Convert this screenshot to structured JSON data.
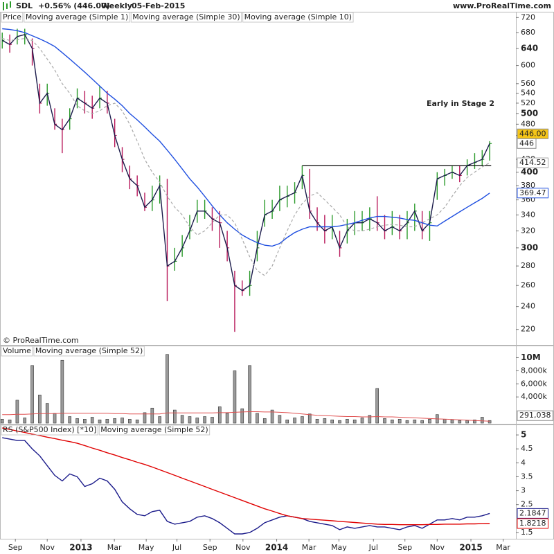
{
  "header": {
    "symbol": "SDL",
    "change": "+0.56% (446.00)",
    "period": "Weekly",
    "date": "05-Feb-2015",
    "site": "www.ProRealTime.com"
  },
  "chart_data": [
    {
      "type": "ohlc",
      "copyright": "© ProRealTime.com",
      "annotation": "Early in Stage 2",
      "log_scale": true,
      "ylim": [
        208,
        736
      ],
      "yticks": [
        720,
        680,
        640,
        600,
        560,
        540,
        520,
        500,
        480,
        460,
        420,
        400,
        380,
        360,
        340,
        320,
        300,
        280,
        260,
        240,
        220
      ],
      "ohlc": {
        "name": "Price",
        "up_color": "#2a9a2a",
        "down_color": "#b8185a",
        "last_label": "446.00",
        "high": [
          680,
          675,
          690,
          690,
          665,
          560,
          560,
          510,
          490,
          510,
          550,
          545,
          535,
          555,
          545,
          490,
          440,
          410,
          395,
          370,
          380,
          395,
          390,
          300,
          315,
          340,
          360,
          360,
          350,
          345,
          320,
          275,
          265,
          275,
          320,
          360,
          360,
          380,
          380,
          385,
          410,
          405,
          350,
          340,
          340,
          320,
          335,
          345,
          345,
          350,
          365,
          340,
          345,
          340,
          345,
          355,
          345,
          345,
          400,
          405,
          410,
          410,
          420,
          430,
          435,
          450
        ],
        "low": [
          640,
          630,
          650,
          650,
          600,
          500,
          515,
          470,
          430,
          470,
          510,
          500,
          490,
          510,
          500,
          440,
          400,
          375,
          365,
          345,
          345,
          355,
          245,
          275,
          290,
          310,
          330,
          335,
          320,
          300,
          285,
          218,
          250,
          250,
          285,
          325,
          335,
          345,
          350,
          355,
          375,
          335,
          320,
          305,
          310,
          290,
          305,
          315,
          320,
          320,
          320,
          310,
          315,
          310,
          310,
          320,
          310,
          308,
          360,
          380,
          390,
          385,
          395,
          405,
          410,
          418
        ],
        "close": [
          660,
          650,
          670,
          675,
          640,
          520,
          540,
          480,
          470,
          490,
          530,
          520,
          510,
          530,
          520,
          460,
          420,
          390,
          380,
          350,
          360,
          380,
          280,
          285,
          300,
          320,
          345,
          345,
          335,
          330,
          300,
          260,
          255,
          260,
          300,
          340,
          345,
          360,
          365,
          370,
          395,
          345,
          330,
          320,
          325,
          300,
          320,
          330,
          330,
          335,
          330,
          320,
          325,
          320,
          330,
          345,
          320,
          330,
          390,
          395,
          400,
          395,
          410,
          415,
          420,
          446
        ]
      },
      "series": [
        {
          "name": "Moving average (Simple 1)",
          "source": "close",
          "color": "#1a1a4a",
          "last_label": "446"
        },
        {
          "name": "Moving average (Simple 30)",
          "color": "#1f4fe0",
          "last_label": "369.47",
          "values": [
            690,
            688,
            685,
            680,
            672,
            664,
            655,
            645,
            630,
            615,
            600,
            585,
            570,
            555,
            540,
            528,
            515,
            500,
            488,
            475,
            462,
            450,
            435,
            420,
            405,
            390,
            378,
            365,
            352,
            340,
            330,
            322,
            315,
            310,
            306,
            303,
            302,
            305,
            312,
            318,
            322,
            325,
            325,
            325,
            325,
            326,
            328,
            330,
            333,
            336,
            338,
            338,
            337,
            336,
            334,
            333,
            330,
            327,
            326,
            332,
            338,
            344,
            350,
            356,
            362,
            369.47
          ]
        },
        {
          "name": "Moving average (Simple 10)",
          "color": "#a8a8a8",
          "dashed": true,
          "last_label": "414.52",
          "values": [
            665,
            660,
            662,
            665,
            660,
            640,
            615,
            590,
            560,
            540,
            515,
            505,
            500,
            505,
            515,
            520,
            505,
            480,
            450,
            420,
            400,
            385,
            365,
            350,
            340,
            325,
            315,
            320,
            330,
            340,
            340,
            330,
            310,
            290,
            275,
            270,
            280,
            300,
            320,
            340,
            355,
            365,
            370,
            360,
            350,
            340,
            325,
            320,
            320,
            322,
            325,
            327,
            328,
            327,
            325,
            325,
            330,
            335,
            340,
            350,
            365,
            380,
            392,
            400,
            408,
            414.52
          ]
        }
      ],
      "resistance": {
        "value": 410,
        "from": 40,
        "to": 65.2
      }
    },
    {
      "type": "bar",
      "name": "Volume",
      "color": "#9a9a9a",
      "ylim": [
        0,
        11000000
      ],
      "yticks": [
        {
          "value": 10000000,
          "label": "10M"
        },
        {
          "value": 8000000,
          "label": "8,000k"
        },
        {
          "value": 6000000,
          "label": "6,000k"
        },
        {
          "value": 4000000,
          "label": "4,000k"
        }
      ],
      "values": [
        600000,
        500000,
        3500000,
        800000,
        8800000,
        4300000,
        3000000,
        1500000,
        9600000,
        1000000,
        700000,
        600000,
        900000,
        500000,
        600000,
        700000,
        800000,
        600000,
        500000,
        1600000,
        2300000,
        1000000,
        10500000,
        2000000,
        1200000,
        1000000,
        800000,
        1000000,
        900000,
        2500000,
        1500000,
        8000000,
        2200000,
        8800000,
        1500000,
        700000,
        2000000,
        1200000,
        500000,
        800000,
        1000000,
        1400000,
        600000,
        700000,
        500000,
        400000,
        600000,
        500000,
        800000,
        1200000,
        5300000,
        700000,
        500000,
        600000,
        400000,
        500000,
        400000,
        600000,
        1300000,
        600000,
        500000,
        400000,
        400000,
        500000,
        900000,
        400000
      ],
      "series": [
        {
          "name": "Moving average (Simple 52)",
          "color": "#e05050",
          "last_label": "291,038",
          "values": [
            1300000,
            1300000,
            1350000,
            1350000,
            1400000,
            1450000,
            1450000,
            1450000,
            1500000,
            1500000,
            1500000,
            1500000,
            1500000,
            1500000,
            1500000,
            1450000,
            1450000,
            1400000,
            1400000,
            1400000,
            1400000,
            1400000,
            1550000,
            1550000,
            1550000,
            1550000,
            1550000,
            1550000,
            1550000,
            1600000,
            1600000,
            1650000,
            1700000,
            1750000,
            1750000,
            1700000,
            1700000,
            1650000,
            1600000,
            1500000,
            1400000,
            1300000,
            1200000,
            1150000,
            1100000,
            1050000,
            1000000,
            1000000,
            950000,
            950000,
            1000000,
            950000,
            950000,
            900000,
            850000,
            800000,
            750000,
            700000,
            650000,
            600000,
            550000,
            500000,
            450000,
            400000,
            350000,
            291038
          ]
        }
      ]
    },
    {
      "type": "line",
      "ylim": [
        1.3,
        5.3
      ],
      "yticks": [
        5,
        4.5,
        4,
        3.5,
        3,
        2.5,
        1.5
      ],
      "xlim": [
        -0.3,
        68.5
      ],
      "xticks": [
        {
          "value": 1.75,
          "label": "Sep"
        },
        {
          "value": 6.0,
          "label": "Nov"
        },
        {
          "value": 10.5,
          "label": "2013"
        },
        {
          "value": 14.95,
          "label": "Mar"
        },
        {
          "value": 19.2,
          "label": "May"
        },
        {
          "value": 23.3,
          "label": "Jul"
        },
        {
          "value": 27.7,
          "label": "Sep"
        },
        {
          "value": 32.1,
          "label": "Nov"
        },
        {
          "value": 36.6,
          "label": "2014"
        },
        {
          "value": 40.9,
          "label": "Mar"
        },
        {
          "value": 44.9,
          "label": "May"
        },
        {
          "value": 49.5,
          "label": "Jul"
        },
        {
          "value": 53.7,
          "label": "Sep"
        },
        {
          "value": 58.0,
          "label": "Nov"
        },
        {
          "value": 62.5,
          "label": "2015"
        },
        {
          "value": 66.8,
          "label": "Mar"
        }
      ],
      "series": [
        {
          "name": "RS (S&P500 Index) [*10]",
          "color": "#1a1a8a",
          "last_label": "2.1847",
          "values": [
            4.9,
            4.85,
            4.8,
            4.8,
            4.5,
            4.25,
            3.9,
            3.55,
            3.35,
            3.6,
            3.5,
            3.15,
            3.25,
            3.45,
            3.35,
            3.05,
            2.6,
            2.35,
            2.15,
            2.1,
            2.25,
            2.3,
            1.9,
            1.8,
            1.85,
            1.9,
            2.05,
            2.1,
            2.0,
            1.85,
            1.65,
            1.45,
            1.45,
            1.5,
            1.65,
            1.85,
            1.95,
            2.05,
            2.1,
            2.05,
            2.0,
            1.9,
            1.85,
            1.8,
            1.75,
            1.6,
            1.7,
            1.65,
            1.7,
            1.75,
            1.7,
            1.7,
            1.65,
            1.6,
            1.7,
            1.75,
            1.65,
            1.8,
            1.95,
            1.95,
            2.0,
            1.95,
            2.05,
            2.05,
            2.1,
            2.1847
          ]
        },
        {
          "name": "Moving average (Simple 52)",
          "color": "#e00000",
          "last_label": "1.8218",
          "values": [
            5.25,
            5.2,
            5.14,
            5.09,
            5.03,
            4.98,
            4.92,
            4.87,
            4.81,
            4.76,
            4.7,
            4.62,
            4.53,
            4.45,
            4.36,
            4.28,
            4.19,
            4.11,
            4.02,
            3.94,
            3.85,
            3.75,
            3.65,
            3.55,
            3.45,
            3.35,
            3.25,
            3.15,
            3.05,
            2.95,
            2.85,
            2.75,
            2.65,
            2.55,
            2.45,
            2.35,
            2.27,
            2.18,
            2.1,
            2.05,
            2.0,
            1.98,
            1.96,
            1.94,
            1.92,
            1.9,
            1.88,
            1.86,
            1.84,
            1.82,
            1.8,
            1.79,
            1.79,
            1.78,
            1.78,
            1.78,
            1.78,
            1.79,
            1.79,
            1.8,
            1.8,
            1.8,
            1.81,
            1.81,
            1.82,
            1.8218
          ]
        }
      ]
    }
  ]
}
